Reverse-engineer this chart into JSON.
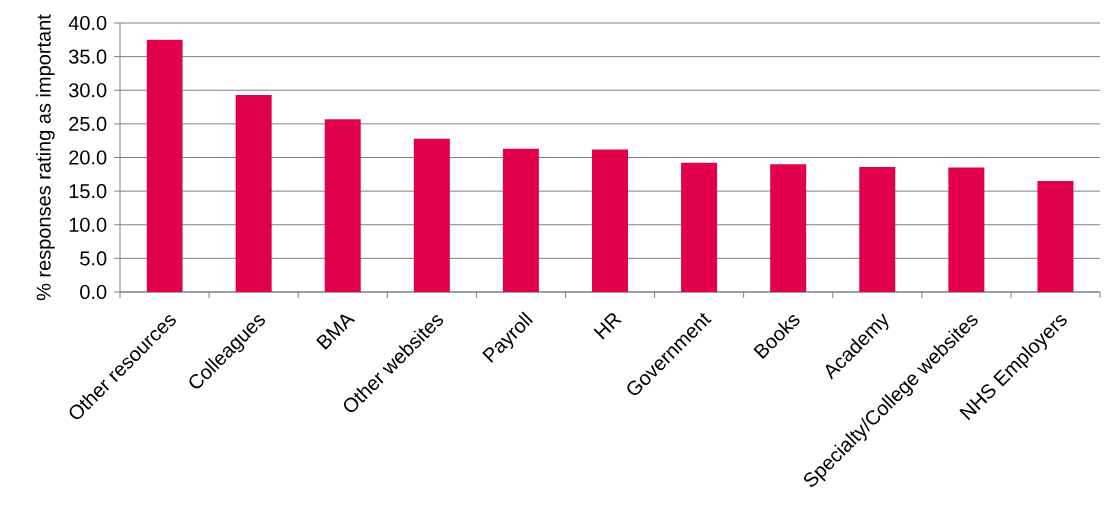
{
  "chart_data": {
    "type": "bar",
    "ylabel": "% responses rating as important",
    "categories": [
      "Other resources",
      "Colleagues",
      "BMA",
      "Other websites",
      "Payroll",
      "HR",
      "Government",
      "Books",
      "Academy",
      "Specialty/College websites",
      "NHS Employers"
    ],
    "values": [
      37.5,
      29.3,
      25.7,
      22.8,
      21.3,
      21.2,
      19.2,
      19.0,
      18.6,
      18.5,
      16.5
    ],
    "color": "#e0004d",
    "ylim": [
      0,
      40
    ],
    "yticks": [
      {
        "value": 0,
        "label": "0.0"
      },
      {
        "value": 5,
        "label": "5.0"
      },
      {
        "value": 10,
        "label": "10.0"
      },
      {
        "value": 15,
        "label": "15.0"
      },
      {
        "value": 20,
        "label": "20.0"
      },
      {
        "value": 25,
        "label": "25.0"
      },
      {
        "value": 30,
        "label": "30.0"
      },
      {
        "value": 35,
        "label": "35.0"
      },
      {
        "value": 40,
        "label": "40.0"
      }
    ],
    "grid": "y"
  }
}
